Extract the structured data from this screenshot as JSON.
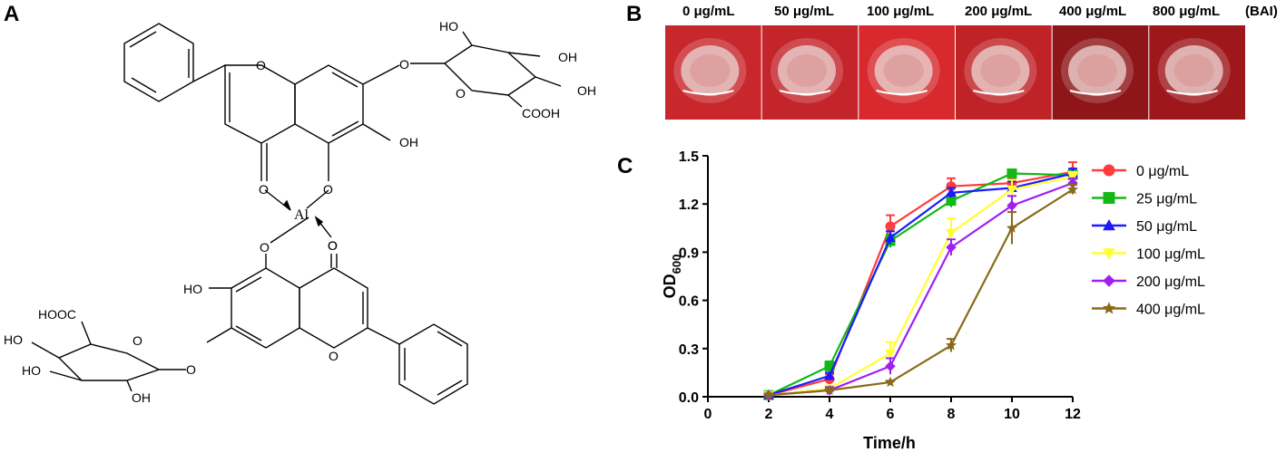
{
  "panels": {
    "a": "A",
    "b": "B",
    "c": "C"
  },
  "structure": {
    "atoms": {
      "o_ring_top": "O",
      "o_glyc_top": "O",
      "o_ring_sugar_top": "O",
      "ho_sugar_top": "HO",
      "oh_sugar_top_1": "OH",
      "oh_sugar_top_2": "OH",
      "cooh_top": "COOH",
      "oh_aglycone_top": "OH",
      "o_carbonyl_top": "O",
      "o_phenolate_top": "O",
      "al": "Al",
      "o_phenolate_bottom": "O",
      "o_carbonyl_bottom": "O",
      "o_carbonyl_bottom_dbl": "O",
      "ho_aglycone_bottom": "HO",
      "hooc_bottom": "HOOC",
      "ho_sugar_bottom_1": "HO",
      "ho_sugar_bottom_2": "HO",
      "oh_sugar_bottom": "OH",
      "o_ring_sugar_bottom": "O",
      "o_glyc_bottom": "O",
      "o_ring_bottom": "O"
    }
  },
  "plates": {
    "concentrations": [
      "0 μg/mL",
      "50 μg/mL",
      "100 μg/mL",
      "200 μg/mL",
      "400 μg/mL",
      "800 μg/mL"
    ],
    "suffix": "(BAI)",
    "colors": [
      "#c8282c",
      "#c4252b",
      "#d82a2e",
      "#c02327",
      "#8e1518",
      "#9e171b"
    ]
  },
  "chart_data": {
    "type": "line",
    "xlabel": "Time/h",
    "ylabel_main": "OD",
    "ylabel_sub": "600",
    "xlim": [
      0,
      12
    ],
    "ylim": [
      0,
      1.5
    ],
    "xticks": [
      "0",
      "2",
      "4",
      "6",
      "8",
      "10",
      "12"
    ],
    "yticks": [
      "0.0",
      "0.3",
      "0.6",
      "0.9",
      "1.2",
      "1.5"
    ],
    "x": [
      2,
      4,
      6,
      8,
      10,
      12
    ],
    "legend_position": "right",
    "series": [
      {
        "name": "0 μg/mL",
        "color": "#ff3b3b",
        "marker": "circle",
        "values": [
          0.01,
          0.11,
          1.06,
          1.31,
          1.33,
          1.4
        ],
        "errors": [
          0.01,
          0.03,
          0.07,
          0.05,
          0.03,
          0.06
        ]
      },
      {
        "name": "25 μg/mL",
        "color": "#14b814",
        "marker": "square",
        "values": [
          0.01,
          0.19,
          0.97,
          1.22,
          1.39,
          1.38
        ],
        "errors": [
          0.01,
          0.03,
          0.04,
          0.04,
          0.02,
          0.03
        ]
      },
      {
        "name": "50 μg/mL",
        "color": "#1b1bff",
        "marker": "triangle-up",
        "values": [
          0.01,
          0.13,
          0.99,
          1.27,
          1.3,
          1.39
        ],
        "errors": [
          0.01,
          0.02,
          0.04,
          0.03,
          0.04,
          0.03
        ]
      },
      {
        "name": "100 μg/mL",
        "color": "#ffff33",
        "marker": "triangle-down",
        "values": [
          0.01,
          0.05,
          0.27,
          1.02,
          1.29,
          1.37
        ],
        "errors": [
          0.01,
          0.02,
          0.07,
          0.09,
          0.06,
          0.03
        ]
      },
      {
        "name": "200 μg/mL",
        "color": "#a020f0",
        "marker": "diamond",
        "values": [
          0.01,
          0.04,
          0.19,
          0.93,
          1.19,
          1.33
        ],
        "errors": [
          0.01,
          0.02,
          0.05,
          0.05,
          0.06,
          0.03
        ]
      },
      {
        "name": "400 μg/mL",
        "color": "#8a6a1a",
        "marker": "star",
        "values": [
          0.01,
          0.04,
          0.09,
          0.32,
          1.05,
          1.29
        ],
        "errors": [
          0.01,
          0.01,
          0.01,
          0.04,
          0.1,
          0.03
        ]
      }
    ]
  }
}
